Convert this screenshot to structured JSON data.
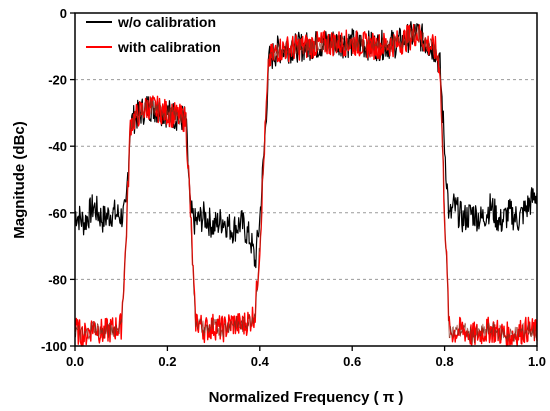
{
  "chart_data": {
    "type": "line",
    "xlabel": "Normalized Frequency ( π )",
    "ylabel": "Magnitude (dBc)",
    "xlim": [
      0.0,
      1.0
    ],
    "ylim": [
      -100,
      0
    ],
    "x_ticks": [
      "0.0",
      "0.2",
      "0.4",
      "0.6",
      "0.8",
      "1.0"
    ],
    "y_ticks": [
      "0",
      "-20",
      "-40",
      "-60",
      "-80",
      "-100"
    ],
    "grid": "horizontal dashed",
    "legend_position": "top-left",
    "series": [
      {
        "name": "w/o calibration",
        "color": "#000000",
        "x": [
          0.0,
          0.02,
          0.04,
          0.06,
          0.08,
          0.1,
          0.11,
          0.12,
          0.14,
          0.16,
          0.18,
          0.2,
          0.22,
          0.24,
          0.25,
          0.26,
          0.28,
          0.3,
          0.32,
          0.34,
          0.36,
          0.38,
          0.39,
          0.4,
          0.41,
          0.42,
          0.44,
          0.5,
          0.55,
          0.6,
          0.65,
          0.7,
          0.74,
          0.76,
          0.78,
          0.79,
          0.8,
          0.81,
          0.82,
          0.84,
          0.86,
          0.88,
          0.9,
          0.92,
          0.94,
          0.96,
          0.98,
          1.0
        ],
        "y": [
          -60,
          -63,
          -58,
          -62,
          -60,
          -61,
          -60,
          -33,
          -30,
          -28,
          -29,
          -30,
          -31,
          -32,
          -60,
          -63,
          -61,
          -64,
          -62,
          -65,
          -63,
          -68,
          -75,
          -62,
          -40,
          -14,
          -11,
          -10,
          -9,
          -9,
          -10,
          -9,
          -6,
          -9,
          -11,
          -16,
          -40,
          -62,
          -58,
          -62,
          -60,
          -62,
          -58,
          -63,
          -60,
          -62,
          -58,
          -54
        ]
      },
      {
        "name": "with calibration",
        "color": "#ff0000",
        "x": [
          0.0,
          0.02,
          0.04,
          0.06,
          0.08,
          0.1,
          0.11,
          0.12,
          0.14,
          0.16,
          0.18,
          0.2,
          0.22,
          0.24,
          0.25,
          0.26,
          0.28,
          0.3,
          0.32,
          0.34,
          0.36,
          0.38,
          0.39,
          0.4,
          0.41,
          0.42,
          0.44,
          0.5,
          0.55,
          0.6,
          0.65,
          0.7,
          0.74,
          0.76,
          0.78,
          0.79,
          0.8,
          0.81,
          0.82,
          0.84,
          0.86,
          0.88,
          0.9,
          0.92,
          0.94,
          0.96,
          0.98,
          1.0
        ],
        "y": [
          -95,
          -97,
          -94,
          -96,
          -95,
          -94,
          -70,
          -33,
          -30,
          -28,
          -29,
          -30,
          -31,
          -32,
          -60,
          -92,
          -95,
          -94,
          -95,
          -93,
          -94,
          -92,
          -90,
          -70,
          -40,
          -14,
          -11,
          -10,
          -9,
          -9,
          -10,
          -9,
          -6,
          -9,
          -11,
          -16,
          -60,
          -95,
          -96,
          -95,
          -97,
          -96,
          -95,
          -96,
          -97,
          -96,
          -95,
          -96
        ]
      }
    ]
  }
}
